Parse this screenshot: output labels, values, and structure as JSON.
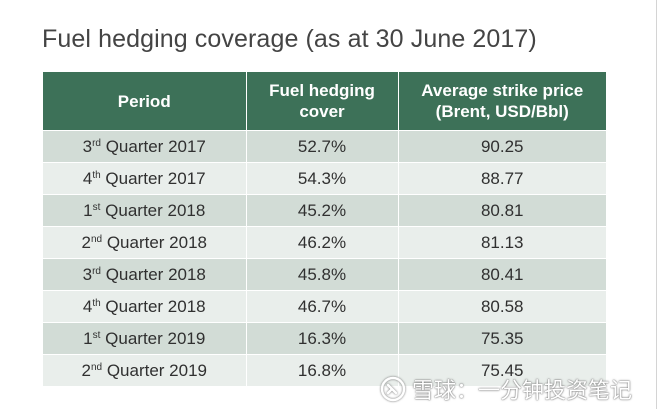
{
  "title": "Fuel hedging coverage (as at 30 June 2017)",
  "table": {
    "headers": {
      "period": "Period",
      "cover_line1": "Fuel hedging",
      "cover_line2": "cover",
      "price_line1": "Average strike price",
      "price_line2": "(Brent, USD/Bbl)"
    },
    "rows": [
      {
        "num": "3",
        "suffix": "rd",
        "label": " Quarter 2017",
        "cover": "52.7%",
        "price": "90.25"
      },
      {
        "num": "4",
        "suffix": "th",
        "label": " Quarter 2017",
        "cover": "54.3%",
        "price": "88.77"
      },
      {
        "num": "1",
        "suffix": "st",
        "label": " Quarter 2018",
        "cover": "45.2%",
        "price": "80.81"
      },
      {
        "num": "2",
        "suffix": "nd",
        "label": " Quarter 2018",
        "cover": "46.2%",
        "price": "81.13"
      },
      {
        "num": "3",
        "suffix": "rd",
        "label": " Quarter 2018",
        "cover": "45.8%",
        "price": "80.41"
      },
      {
        "num": "4",
        "suffix": "th",
        "label": " Quarter 2018",
        "cover": "46.7%",
        "price": "80.58"
      },
      {
        "num": "1",
        "suffix": "st",
        "label": " Quarter 2019",
        "cover": "16.3%",
        "price": "75.35"
      },
      {
        "num": "2",
        "suffix": "nd",
        "label": " Quarter 2019",
        "cover": "16.8%",
        "price": "75.45"
      }
    ]
  },
  "watermark": {
    "text": "雪球：一分钟投资笔记",
    "icon": "snowball-logo-icon"
  },
  "colors": {
    "header_bg": "#3d7158",
    "row_odd": "#d2dcd6",
    "row_even": "#e9eeeb"
  }
}
